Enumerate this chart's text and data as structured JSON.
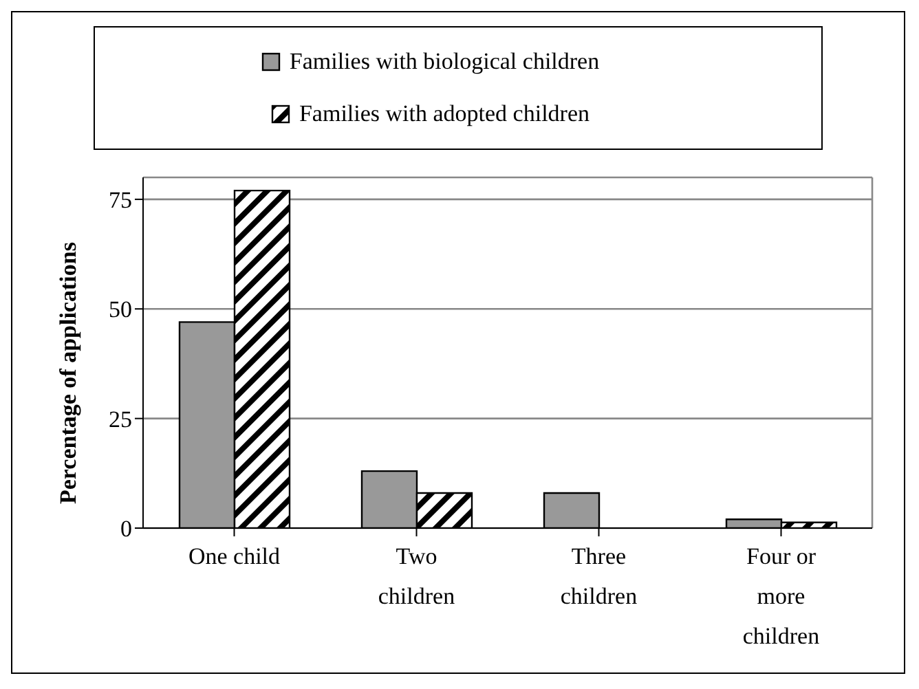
{
  "chart_data": {
    "type": "bar",
    "ylabel": "Percentage of applications",
    "categories": [
      "One child",
      "Two children",
      "Three children",
      "Four or more children"
    ],
    "series": [
      {
        "name": "Families with biological children",
        "color": "#999999",
        "values": [
          47,
          13,
          8,
          2
        ]
      },
      {
        "name": "Families with adopted children",
        "color": "#000000",
        "values": [
          77,
          8,
          0,
          1.3
        ]
      }
    ],
    "ylim": [
      0,
      80
    ],
    "yticks": [
      0,
      25,
      50,
      75
    ],
    "grid": "y",
    "legend": "top"
  }
}
